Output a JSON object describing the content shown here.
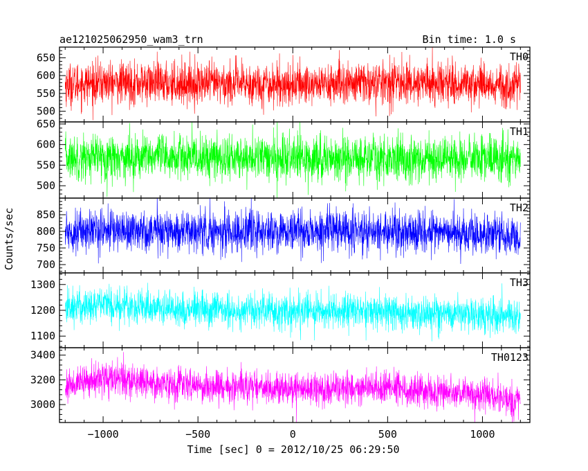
{
  "header": {
    "title": "ae121025062950_wam3_trn",
    "bin_time": "Bin time: 1.0 s"
  },
  "chart_data": {
    "type": "line",
    "title": "ae121025062950_wam3_trn",
    "subtitle": "Bin time: 1.0 s",
    "xlabel": "Time [sec] 0 = 2012/10/25 06:29:50",
    "ylabel": "Counts/sec",
    "xlim": [
      -1230,
      1250
    ],
    "x_range": [
      -1200,
      1200
    ],
    "x_ticks": [
      -1000,
      -500,
      0,
      500,
      1000
    ],
    "x_tick_labels": [
      "−1000",
      "−500",
      "0",
      "500",
      "1000"
    ],
    "grid": false,
    "panels": [
      {
        "name": "TH0",
        "color": "#ff0000",
        "ylim": [
          470,
          680
        ],
        "y_ticks": [
          500,
          550,
          600,
          650
        ],
        "y_tick_labels": [
          "500",
          "550",
          "600",
          "650"
        ],
        "trend": {
          "x": [
            -1200,
            -1000,
            -500,
            0,
            500,
            1000,
            1200
          ],
          "y": [
            575,
            580,
            578,
            575,
            580,
            578,
            570
          ]
        },
        "spread": 38
      },
      {
        "name": "TH1",
        "color": "#00ff00",
        "ylim": [
          470,
          655
        ],
        "y_ticks": [
          500,
          550,
          600,
          650
        ],
        "y_tick_labels": [
          "500",
          "550",
          "600",
          "650"
        ],
        "trend": {
          "x": [
            -1200,
            -1000,
            -500,
            0,
            500,
            1000,
            1200
          ],
          "y": [
            568,
            570,
            568,
            566,
            567,
            566,
            562
          ]
        },
        "spread": 35
      },
      {
        "name": "TH2",
        "color": "#0000ff",
        "ylim": [
          675,
          900
        ],
        "y_ticks": [
          700,
          750,
          800,
          850
        ],
        "y_tick_labels": [
          "700",
          "750",
          "800",
          "850"
        ],
        "trend": {
          "x": [
            -1200,
            -1000,
            -500,
            0,
            500,
            1000,
            1200
          ],
          "y": [
            800,
            805,
            800,
            798,
            800,
            790,
            785
          ]
        },
        "spread": 40
      },
      {
        "name": "TH3",
        "color": "#00ffff",
        "ylim": [
          1055,
          1345
        ],
        "y_ticks": [
          1100,
          1200,
          1300
        ],
        "y_tick_labels": [
          "1100",
          "1200",
          "1300"
        ],
        "trend": {
          "x": [
            -1200,
            -1000,
            -500,
            0,
            500,
            1000,
            1200
          ],
          "y": [
            1210,
            1225,
            1200,
            1195,
            1195,
            1180,
            1170
          ]
        },
        "spread": 45
      },
      {
        "name": "TH0123",
        "color": "#ff00ff",
        "ylim": [
          2855,
          3460
        ],
        "y_ticks": [
          3000,
          3200,
          3400
        ],
        "y_tick_labels": [
          "3000",
          "3200",
          "3400"
        ],
        "trend": {
          "x": [
            -1200,
            -1000,
            -500,
            0,
            500,
            1000,
            1200
          ],
          "y": [
            3150,
            3215,
            3150,
            3130,
            3130,
            3080,
            3030
          ]
        },
        "spread": 85
      }
    ]
  }
}
